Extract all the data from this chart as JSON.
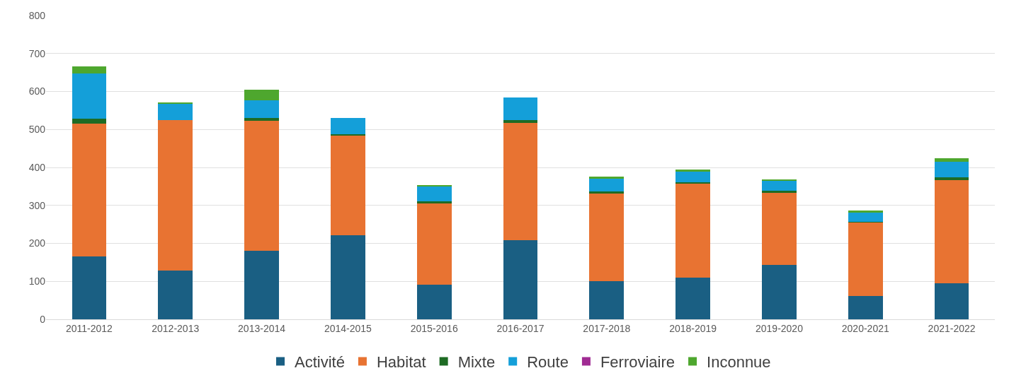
{
  "chart_data": {
    "type": "bar",
    "stacked": true,
    "categories": [
      "2011-2012",
      "2012-2013",
      "2013-2014",
      "2014-2015",
      "2015-2016",
      "2016-2017",
      "2017-2018",
      "2018-2019",
      "2019-2020",
      "2020-2021",
      "2021-2022"
    ],
    "series": [
      {
        "name": "Activité",
        "color": "#1a5f83",
        "values": [
          165,
          129,
          181,
          222,
          92,
          209,
          101,
          109,
          143,
          62,
          94
        ]
      },
      {
        "name": "Habitat",
        "color": "#e87332",
        "values": [
          350,
          396,
          341,
          261,
          213,
          309,
          231,
          250,
          190,
          193,
          273
        ]
      },
      {
        "name": "Mixte",
        "color": "#1e6b24",
        "values": [
          13,
          0,
          9,
          5,
          5,
          6,
          5,
          2,
          5,
          2,
          7
        ]
      },
      {
        "name": "Route",
        "color": "#149fd9",
        "values": [
          120,
          44,
          46,
          42,
          39,
          61,
          35,
          28,
          27,
          24,
          41
        ]
      },
      {
        "name": "Ferroviaire",
        "color": "#a02b93",
        "values": [
          0,
          0,
          0,
          0,
          0,
          0,
          0,
          0,
          0,
          0,
          0
        ]
      },
      {
        "name": "Inconnue",
        "color": "#4ea72e",
        "values": [
          18,
          3,
          28,
          0,
          5,
          0,
          3,
          6,
          4,
          6,
          10
        ]
      }
    ],
    "ylim": [
      0,
      800
    ],
    "yticks": [
      0,
      100,
      200,
      300,
      400,
      500,
      600,
      700,
      800
    ],
    "grid": "y",
    "legend": "bottom"
  }
}
